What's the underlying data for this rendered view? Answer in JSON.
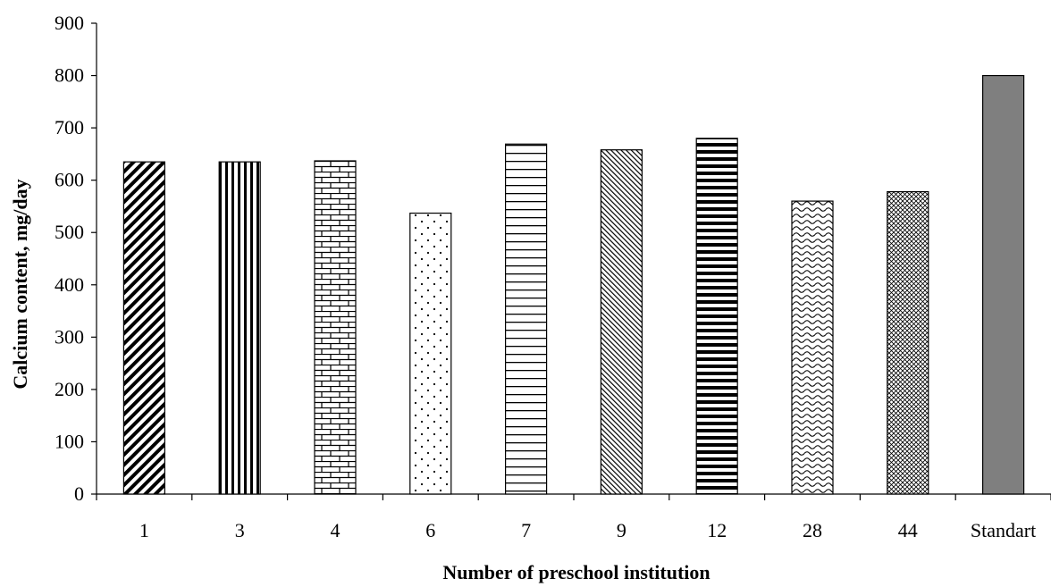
{
  "chart_data": {
    "type": "bar",
    "title": "",
    "xlabel": "Number of preschool institution",
    "ylabel": "Calcium content, mg/day",
    "ylim": [
      0,
      900
    ],
    "yticks": [
      "0",
      "100",
      "200",
      "300",
      "400",
      "500",
      "600",
      "700",
      "800",
      "900"
    ],
    "grid": false,
    "legend": "none",
    "categories": [
      "1",
      "3",
      "4",
      "6",
      "7",
      "9",
      "12",
      "28",
      "44",
      "Standart"
    ],
    "values": [
      635,
      635,
      637,
      537,
      669,
      658,
      680,
      560,
      578,
      800
    ],
    "fills": [
      "diagonal-stripes",
      "vertical-stripes",
      "brick",
      "dots",
      "horizontal-lines",
      "fine-diagonal",
      "thick-horizontal",
      "waves",
      "crosshatch",
      "solid-gray"
    ],
    "colors": {
      "bar_outline": "#000000",
      "standard_fill": "#7f7f7f",
      "axis": "#000000"
    }
  }
}
